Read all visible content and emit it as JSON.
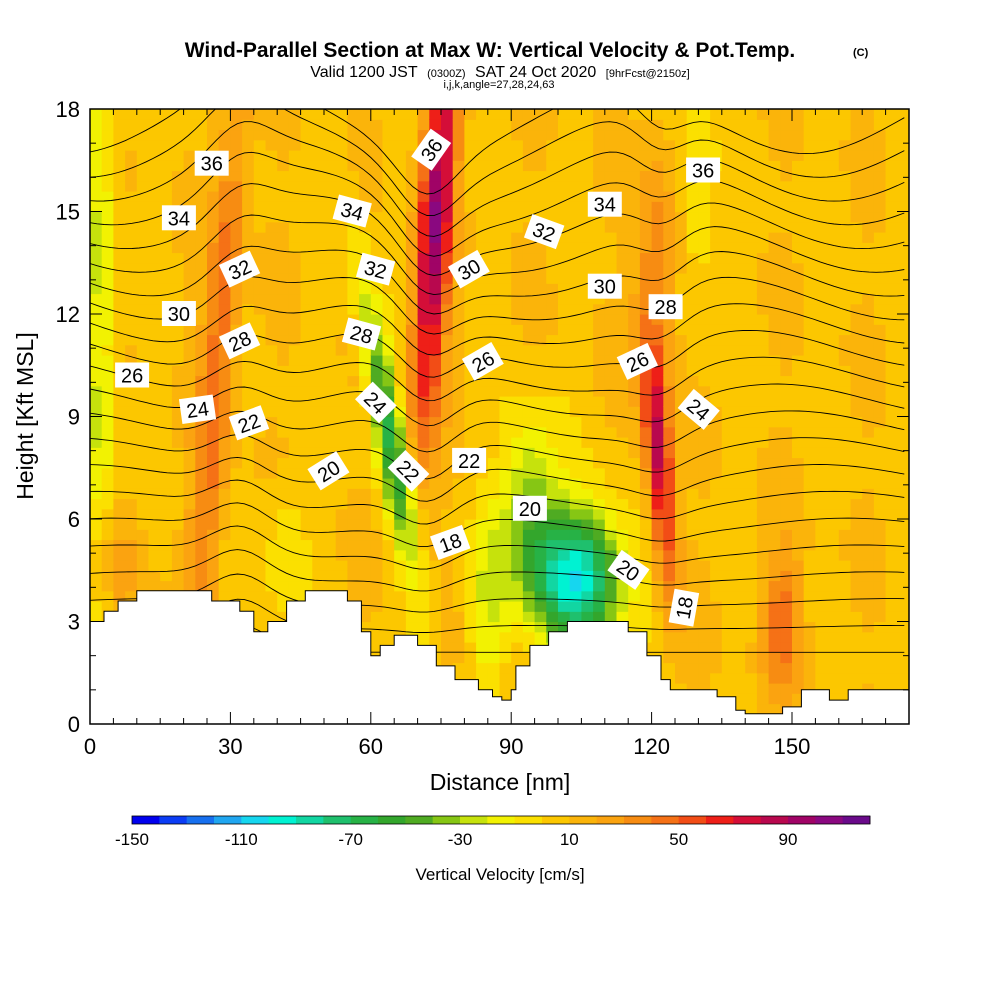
{
  "figure": {
    "title": "Wind-Parallel Section at Max W: Vertical Velocity & Pot.Temp.",
    "copyright_mark": "(C)",
    "subtitle_parts": [
      "Valid 1200 JST",
      "(0300Z)",
      "SAT 24 Oct 2020",
      "[9hrFcst@2150z]"
    ],
    "indices_line": "i,j,k,angle=27,28,24,63"
  },
  "chart_data": {
    "type": "heatmap",
    "title": "Wind-Parallel Section at Max W: Vertical Velocity & Pot.Temp.",
    "xlabel": "Distance [nm]",
    "ylabel": "Height [Kft MSL]",
    "xlim": [
      0,
      175
    ],
    "ylim": [
      0,
      18
    ],
    "x_ticks": [
      0,
      30,
      60,
      90,
      120,
      150
    ],
    "y_ticks": [
      0,
      3,
      6,
      9,
      12,
      15,
      18
    ],
    "grid": false,
    "fill_variable": "Vertical Velocity [cm/s]",
    "colorbar": {
      "label": "Vertical Velocity [cm/s]",
      "tick_labels": [
        -150,
        -110,
        -70,
        -30,
        10,
        50,
        90
      ],
      "min": -150,
      "step": 10,
      "colors": [
        "#0000ee",
        "#0b3cf5",
        "#1770ef",
        "#20a6f0",
        "#16d6ef",
        "#00f2d2",
        "#12d6a2",
        "#1fc06d",
        "#27b246",
        "#33a62c",
        "#4fab22",
        "#86c614",
        "#c6e20c",
        "#f2f202",
        "#fbe000",
        "#fcc700",
        "#fbb40a",
        "#fba310",
        "#f78c12",
        "#f57116",
        "#f24d16",
        "#ee1f18",
        "#d40e38",
        "#b8084e",
        "#a00366",
        "#8a0880",
        "#6a0a8a"
      ],
      "position": "bottom"
    },
    "velocity_cores": [
      {
        "x": 30,
        "y_range": [
          3,
          17.5
        ],
        "max_w": 50
      },
      {
        "x": 74,
        "y_range": [
          9,
          18
        ],
        "max_w": 90
      },
      {
        "x": 68,
        "y_range": [
          5,
          10
        ],
        "min_w": -60
      },
      {
        "x": 104,
        "y_range": [
          3,
          6
        ],
        "min_w": -90
      },
      {
        "x": 123,
        "y_range": [
          3,
          11
        ],
        "max_w": 70
      },
      {
        "x": 148,
        "y_range": [
          1,
          5
        ],
        "max_w": 40
      }
    ],
    "terrain_height_kft": [
      [
        0,
        3.0
      ],
      [
        3,
        3.0
      ],
      [
        3,
        3.3
      ],
      [
        6,
        3.3
      ],
      [
        6,
        3.6
      ],
      [
        10,
        3.6
      ],
      [
        10,
        3.9
      ],
      [
        26,
        3.9
      ],
      [
        26,
        3.6
      ],
      [
        32,
        3.6
      ],
      [
        32,
        3.3
      ],
      [
        35,
        3.3
      ],
      [
        35,
        2.7
      ],
      [
        38,
        2.7
      ],
      [
        38,
        3.0
      ],
      [
        42,
        3.0
      ],
      [
        42,
        3.6
      ],
      [
        46,
        3.6
      ],
      [
        46,
        3.9
      ],
      [
        55,
        3.9
      ],
      [
        55,
        3.6
      ],
      [
        58,
        3.6
      ],
      [
        58,
        2.7
      ],
      [
        60,
        2.7
      ],
      [
        60,
        2.0
      ],
      [
        62,
        2.0
      ],
      [
        62,
        2.3
      ],
      [
        65,
        2.3
      ],
      [
        65,
        2.6
      ],
      [
        70,
        2.6
      ],
      [
        70,
        2.3
      ],
      [
        74,
        2.3
      ],
      [
        74,
        1.7
      ],
      [
        78,
        1.7
      ],
      [
        78,
        1.3
      ],
      [
        83,
        1.3
      ],
      [
        83,
        1.0
      ],
      [
        86,
        1.0
      ],
      [
        86,
        0.8
      ],
      [
        88,
        0.8
      ],
      [
        88,
        0.7
      ],
      [
        90,
        0.7
      ],
      [
        90,
        1.0
      ],
      [
        91,
        1.0
      ],
      [
        91,
        1.7
      ],
      [
        94,
        1.7
      ],
      [
        94,
        2.3
      ],
      [
        98,
        2.3
      ],
      [
        98,
        2.7
      ],
      [
        102,
        2.7
      ],
      [
        102,
        3.0
      ],
      [
        115,
        3.0
      ],
      [
        115,
        2.7
      ],
      [
        119,
        2.7
      ],
      [
        119,
        2.0
      ],
      [
        122,
        2.0
      ],
      [
        122,
        1.3
      ],
      [
        124,
        1.3
      ],
      [
        124,
        1.0
      ],
      [
        134,
        1.0
      ],
      [
        134,
        0.8
      ],
      [
        138,
        0.8
      ],
      [
        138,
        0.4
      ],
      [
        140,
        0.4
      ],
      [
        140,
        0.3
      ],
      [
        148,
        0.3
      ],
      [
        148,
        0.5
      ],
      [
        152,
        0.5
      ],
      [
        152,
        1.0
      ],
      [
        158,
        1.0
      ],
      [
        158,
        0.7
      ],
      [
        162,
        0.7
      ],
      [
        162,
        1.0
      ],
      [
        168,
        1.0
      ],
      [
        168,
        1.0
      ],
      [
        175,
        1.0
      ]
    ],
    "contour_variable": "Potential temperature (C)",
    "contour_interval": 1,
    "contour_labels": [
      {
        "text": "36",
        "x": 26,
        "y": 16.4,
        "angle": 0
      },
      {
        "text": "34",
        "x": 19,
        "y": 14.8,
        "angle": 0
      },
      {
        "text": "32",
        "x": 32,
        "y": 13.3,
        "angle": -25
      },
      {
        "text": "30",
        "x": 19,
        "y": 12.0,
        "angle": 0
      },
      {
        "text": "28",
        "x": 32,
        "y": 11.2,
        "angle": -25
      },
      {
        "text": "26",
        "x": 9,
        "y": 10.2,
        "angle": 0
      },
      {
        "text": "24",
        "x": 23,
        "y": 9.2,
        "angle": -8
      },
      {
        "text": "22",
        "x": 34,
        "y": 8.8,
        "angle": -20
      },
      {
        "text": "20",
        "x": 51,
        "y": 7.4,
        "angle": -32
      },
      {
        "text": "36",
        "x": 73,
        "y": 16.8,
        "angle": -55
      },
      {
        "text": "34",
        "x": 56,
        "y": 15.0,
        "angle": 15
      },
      {
        "text": "32",
        "x": 61,
        "y": 13.3,
        "angle": 15
      },
      {
        "text": "28",
        "x": 58,
        "y": 11.4,
        "angle": 15
      },
      {
        "text": "30",
        "x": 81,
        "y": 13.3,
        "angle": -30
      },
      {
        "text": "26",
        "x": 84,
        "y": 10.6,
        "angle": -30
      },
      {
        "text": "24",
        "x": 61,
        "y": 9.4,
        "angle": 45
      },
      {
        "text": "22",
        "x": 68,
        "y": 7.4,
        "angle": 45
      },
      {
        "text": "22",
        "x": 81,
        "y": 7.7,
        "angle": 0
      },
      {
        "text": "18",
        "x": 77,
        "y": 5.3,
        "angle": -20
      },
      {
        "text": "20",
        "x": 94,
        "y": 6.3,
        "angle": 0
      },
      {
        "text": "32",
        "x": 97,
        "y": 14.4,
        "angle": 20
      },
      {
        "text": "34",
        "x": 110,
        "y": 15.2,
        "angle": 0
      },
      {
        "text": "30",
        "x": 110,
        "y": 12.8,
        "angle": 0
      },
      {
        "text": "28",
        "x": 123,
        "y": 12.2,
        "angle": 0
      },
      {
        "text": "26",
        "x": 117,
        "y": 10.6,
        "angle": -25
      },
      {
        "text": "24",
        "x": 130,
        "y": 9.2,
        "angle": 40
      },
      {
        "text": "20",
        "x": 115,
        "y": 4.5,
        "angle": 35
      },
      {
        "text": "18",
        "x": 127,
        "y": 3.4,
        "angle": -80
      },
      {
        "text": "36",
        "x": 131,
        "y": 16.2,
        "angle": 0
      }
    ]
  }
}
